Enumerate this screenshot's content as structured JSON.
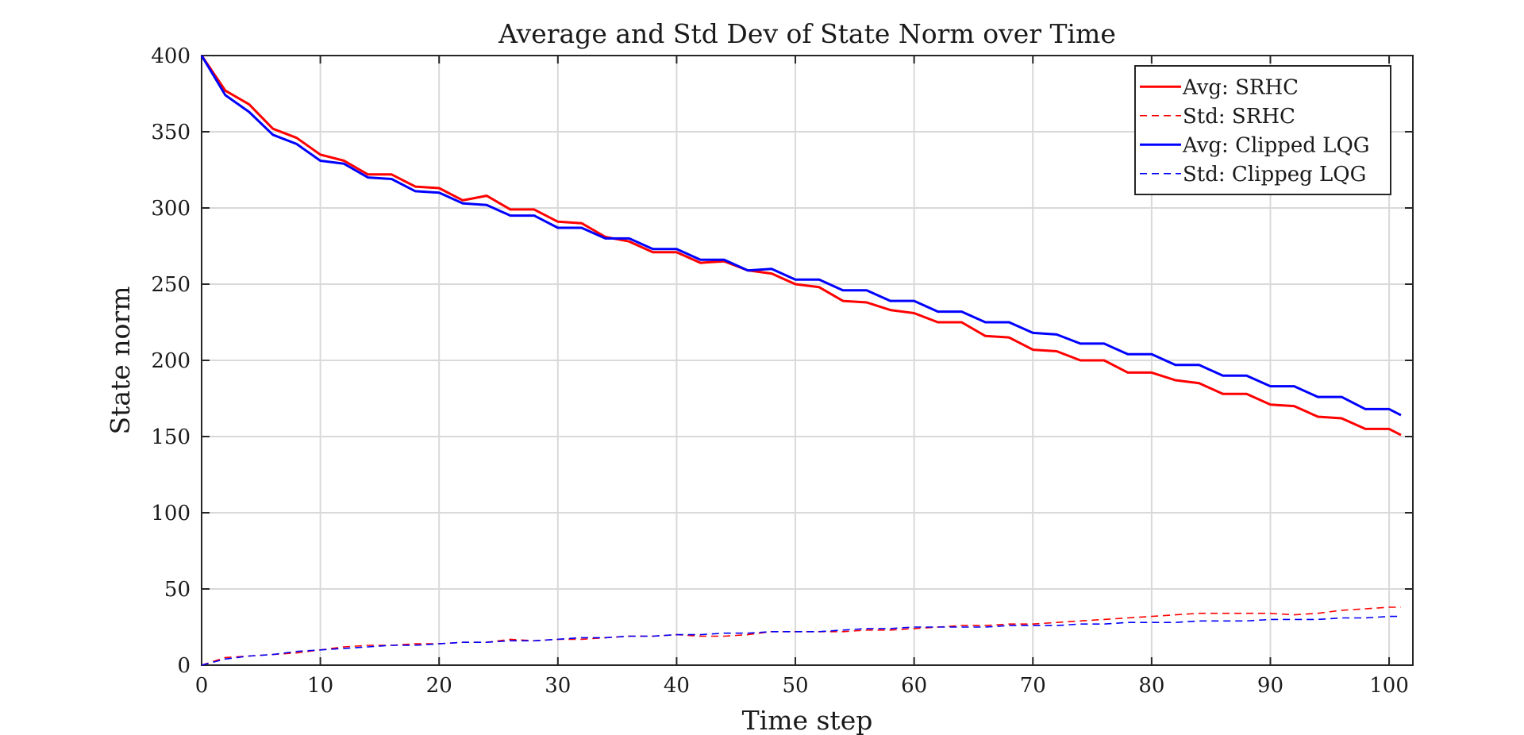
{
  "chart_data": {
    "type": "line",
    "title": "Average and Std Dev of State Norm over Time",
    "xlabel": "Time step",
    "ylabel": "State norm",
    "xlim": [
      0,
      102
    ],
    "ylim": [
      0,
      400
    ],
    "xticks": [
      0,
      10,
      20,
      30,
      40,
      50,
      60,
      70,
      80,
      90,
      100
    ],
    "yticks": [
      0,
      50,
      100,
      150,
      200,
      250,
      300,
      350,
      400
    ],
    "grid": true,
    "legend_position": "top-right",
    "x": [
      0,
      2,
      4,
      6,
      8,
      10,
      12,
      14,
      16,
      18,
      20,
      22,
      24,
      26,
      28,
      30,
      32,
      34,
      36,
      38,
      40,
      42,
      44,
      46,
      48,
      50,
      52,
      54,
      56,
      58,
      60,
      62,
      64,
      66,
      68,
      70,
      72,
      74,
      76,
      78,
      80,
      82,
      84,
      86,
      88,
      90,
      92,
      94,
      96,
      98,
      100,
      101
    ],
    "series": [
      {
        "name": "Avg: SRHC",
        "color": "#ff0000",
        "dash": "solid",
        "values": [
          400,
          377,
          368,
          352,
          346,
          335,
          331,
          322,
          322,
          314,
          313,
          305,
          308,
          299,
          299,
          291,
          290,
          281,
          278,
          271,
          271,
          264,
          265,
          259,
          257,
          250,
          248,
          239,
          238,
          233,
          231,
          225,
          225,
          216,
          215,
          207,
          206,
          200,
          200,
          192,
          192,
          187,
          185,
          178,
          178,
          171,
          170,
          163,
          162,
          155,
          155,
          151
        ]
      },
      {
        "name": "Std: SRHC",
        "color": "#ff0000",
        "dash": "dashed",
        "values": [
          0,
          5,
          6,
          7,
          8,
          10,
          12,
          13,
          13,
          14,
          14,
          15,
          15,
          17,
          16,
          17,
          17,
          18,
          19,
          19,
          20,
          19,
          19,
          20,
          22,
          22,
          22,
          22,
          23,
          23,
          24,
          25,
          26,
          26,
          27,
          27,
          28,
          29,
          30,
          31,
          32,
          33,
          34,
          34,
          34,
          34,
          33,
          34,
          36,
          37,
          38,
          38
        ]
      },
      {
        "name": "Avg: Clipped LQG",
        "color": "#0000ff",
        "dash": "solid",
        "values": [
          400,
          374,
          363,
          348,
          342,
          331,
          329,
          320,
          319,
          311,
          310,
          303,
          302,
          295,
          295,
          287,
          287,
          280,
          280,
          273,
          273,
          266,
          266,
          259,
          260,
          253,
          253,
          246,
          246,
          239,
          239,
          232,
          232,
          225,
          225,
          218,
          217,
          211,
          211,
          204,
          204,
          197,
          197,
          190,
          190,
          183,
          183,
          176,
          176,
          168,
          168,
          164
        ]
      },
      {
        "name": "Std: Clippeg LQG",
        "color": "#0000ff",
        "dash": "dashed",
        "values": [
          0,
          4,
          6,
          7,
          9,
          10,
          11,
          12,
          13,
          13,
          14,
          15,
          15,
          16,
          16,
          17,
          18,
          18,
          19,
          19,
          20,
          20,
          21,
          21,
          22,
          22,
          22,
          23,
          24,
          24,
          25,
          25,
          25,
          25,
          26,
          26,
          26,
          27,
          27,
          28,
          28,
          28,
          29,
          29,
          29,
          30,
          30,
          30,
          31,
          31,
          32,
          32
        ]
      }
    ]
  }
}
